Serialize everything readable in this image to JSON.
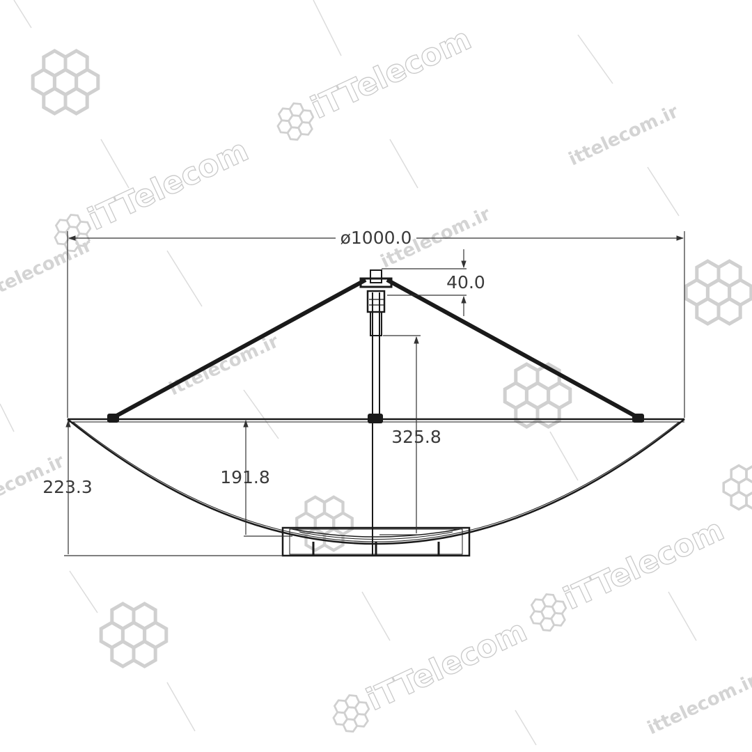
{
  "dimensions": {
    "diameter": "ø1000.0",
    "feed_offset": "40.0",
    "feed_height": "325.8",
    "dish_depth": "191.8",
    "total_height": "223.3"
  },
  "watermarks": {
    "brand": "iTTelecom",
    "domain": "ittelecom.ir"
  },
  "colors": {
    "line": "#1a1a1a",
    "watermark": "#d0d0d0",
    "background": "#ffffff"
  }
}
